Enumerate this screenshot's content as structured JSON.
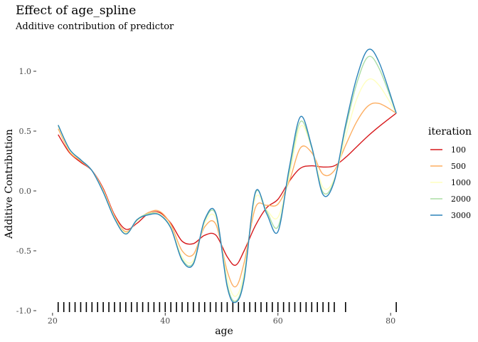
{
  "chart_data": {
    "type": "line",
    "title": "Effect of age_spline",
    "subtitle": "Additive contribution of predictor",
    "xlabel": "age",
    "ylabel": "Additive Contribution",
    "xlim": [
      18,
      82
    ],
    "ylim": [
      -1.0,
      1.25
    ],
    "x_ticks": [
      20,
      40,
      60,
      80
    ],
    "y_ticks": [
      -1.0,
      -0.5,
      0.0,
      0.5,
      1.0
    ],
    "y_tick_labels": [
      "-1.0",
      "-0.5",
      "0.0",
      "0.5",
      "1.0"
    ],
    "grid": false,
    "legend": {
      "title": "iteration",
      "placement": "right"
    },
    "x": [
      21,
      23,
      25,
      27,
      29,
      31,
      33,
      35,
      37,
      39,
      41,
      43,
      45,
      47,
      49,
      51,
      52.5,
      54,
      56,
      58,
      60,
      62,
      64,
      66,
      68,
      70,
      72,
      74,
      76,
      78,
      81
    ],
    "series": [
      {
        "name": "100",
        "color": "#d7191c",
        "values": [
          0.47,
          0.32,
          0.24,
          0.17,
          0.02,
          -0.2,
          -0.32,
          -0.27,
          -0.19,
          -0.18,
          -0.27,
          -0.42,
          -0.44,
          -0.37,
          -0.37,
          -0.55,
          -0.62,
          -0.5,
          -0.29,
          -0.14,
          -0.07,
          0.08,
          0.19,
          0.21,
          0.2,
          0.21,
          0.28,
          0.37,
          0.46,
          0.54,
          0.65
        ]
      },
      {
        "name": "500",
        "color": "#fdae61",
        "values": [
          0.52,
          0.33,
          0.25,
          0.17,
          0.01,
          -0.21,
          -0.34,
          -0.25,
          -0.18,
          -0.17,
          -0.28,
          -0.5,
          -0.53,
          -0.3,
          -0.28,
          -0.67,
          -0.8,
          -0.6,
          -0.14,
          -0.12,
          -0.11,
          0.08,
          0.36,
          0.32,
          0.14,
          0.17,
          0.38,
          0.58,
          0.71,
          0.73,
          0.65
        ]
      },
      {
        "name": "1000",
        "color": "#ffffbf",
        "values": [
          0.54,
          0.34,
          0.26,
          0.17,
          0.0,
          -0.22,
          -0.35,
          -0.25,
          -0.19,
          -0.19,
          -0.3,
          -0.55,
          -0.58,
          -0.27,
          -0.23,
          -0.73,
          -0.88,
          -0.68,
          -0.06,
          -0.16,
          -0.22,
          0.12,
          0.54,
          0.36,
          0.03,
          0.1,
          0.45,
          0.77,
          0.93,
          0.88,
          0.65
        ]
      },
      {
        "name": "2000",
        "color": "#abdda4",
        "values": [
          0.55,
          0.35,
          0.26,
          0.17,
          -0.01,
          -0.23,
          -0.36,
          -0.24,
          -0.19,
          -0.2,
          -0.31,
          -0.57,
          -0.6,
          -0.25,
          -0.2,
          -0.78,
          -0.92,
          -0.72,
          -0.02,
          -0.17,
          -0.3,
          0.16,
          0.58,
          0.36,
          -0.01,
          0.09,
          0.52,
          0.9,
          1.12,
          1.02,
          0.65
        ]
      },
      {
        "name": "3000",
        "color": "#2b83ba",
        "values": [
          0.55,
          0.35,
          0.26,
          0.17,
          -0.01,
          -0.23,
          -0.36,
          -0.24,
          -0.2,
          -0.2,
          -0.31,
          -0.58,
          -0.61,
          -0.24,
          -0.19,
          -0.8,
          -0.93,
          -0.74,
          -0.01,
          -0.19,
          -0.34,
          0.19,
          0.62,
          0.37,
          -0.03,
          0.08,
          0.55,
          0.95,
          1.18,
          1.07,
          0.65
        ]
      }
    ],
    "rug_x": [
      21,
      22,
      23,
      24,
      25,
      26,
      27,
      28,
      29,
      30,
      31,
      32,
      33,
      34,
      35,
      36,
      37,
      38,
      39,
      40,
      41,
      42,
      43,
      44,
      45,
      46,
      47,
      48,
      49,
      50,
      51,
      52,
      53,
      54,
      55,
      56,
      57,
      58,
      59,
      60,
      61,
      62,
      63,
      64,
      65,
      66,
      67,
      68,
      69,
      70,
      72,
      81
    ]
  }
}
